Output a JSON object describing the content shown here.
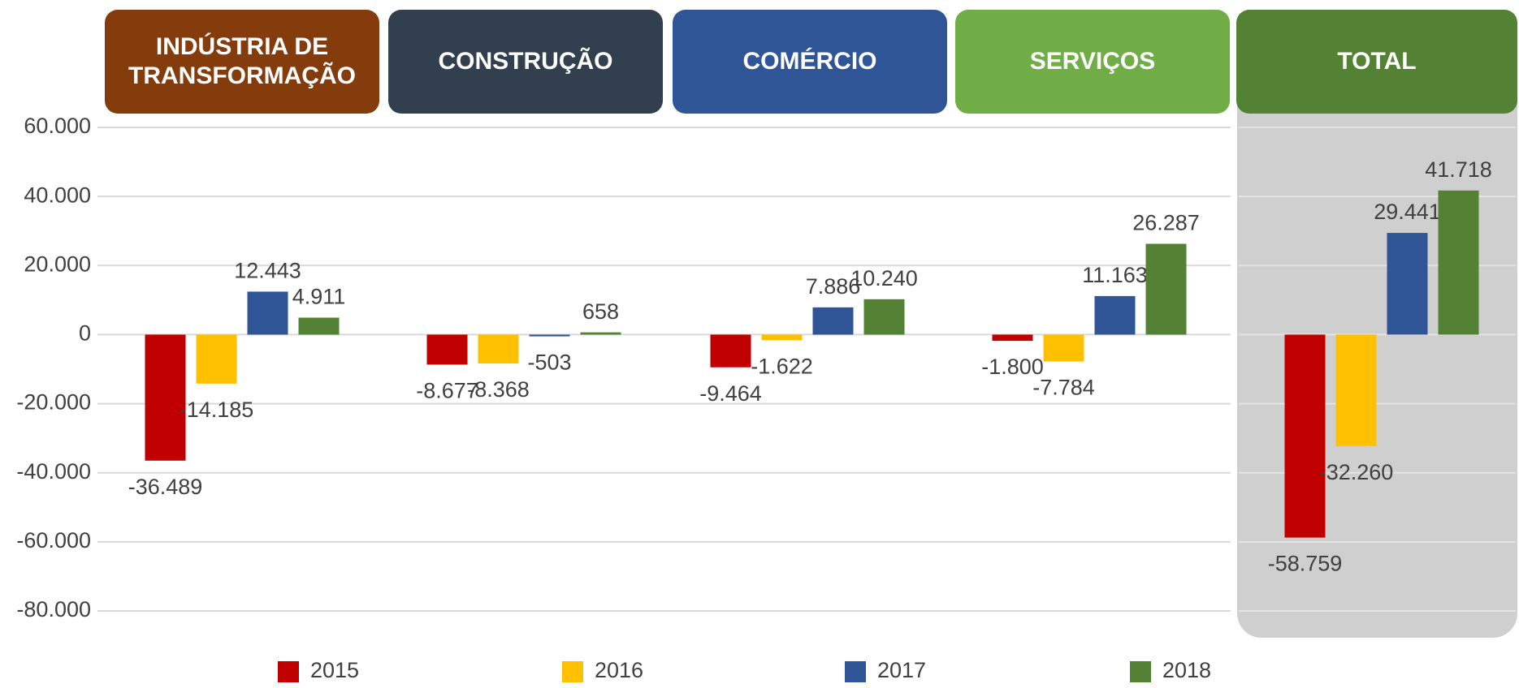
{
  "chart_data": {
    "type": "bar",
    "categories": [
      "INDÚSTRIA DE TRANSFORMAÇÃO",
      "CONSTRUÇÃO",
      "COMÉRCIO",
      "SERVIÇOS",
      "TOTAL"
    ],
    "header_colors": [
      "#843c0c",
      "#323f4f",
      "#2f5597",
      "#70ad47",
      "#548235"
    ],
    "series": [
      {
        "name": "2015",
        "color": "#c00000",
        "values": [
          -36489,
          -8677,
          -9464,
          -1800,
          -58759
        ],
        "value_labels": [
          "-36.489",
          "-8.677",
          "-9.464",
          "-1.800",
          "-58.759"
        ]
      },
      {
        "name": "2016",
        "color": "#ffc000",
        "values": [
          -14185,
          -8368,
          -1622,
          -7784,
          -32260
        ],
        "value_labels": [
          "-14.185",
          "-8.368",
          "-1.622",
          "-7.784",
          "-32.260"
        ]
      },
      {
        "name": "2017",
        "color": "#2f5597",
        "values": [
          12443,
          -503,
          7886,
          11163,
          29441
        ],
        "value_labels": [
          "12.443",
          "-503",
          "7.886",
          "11.163",
          "29.441"
        ]
      },
      {
        "name": "2018",
        "color": "#548235",
        "values": [
          4911,
          658,
          10240,
          26287,
          41718
        ],
        "value_labels": [
          "4.911",
          "658",
          "10.240",
          "26.287",
          "41.718"
        ]
      }
    ],
    "ylim": [
      -80000,
      60000
    ],
    "yticks": [
      {
        "value": -80000,
        "label": "-80.000"
      },
      {
        "value": -60000,
        "label": "-60.000"
      },
      {
        "value": -40000,
        "label": "-40.000"
      },
      {
        "value": -20000,
        "label": "-20.000"
      },
      0,
      {
        "value": 20000,
        "label": "20.000"
      },
      {
        "value": 40000,
        "label": "40.000"
      },
      {
        "value": 60000,
        "label": "60.000"
      }
    ],
    "grid": true,
    "legend": "bottom"
  }
}
